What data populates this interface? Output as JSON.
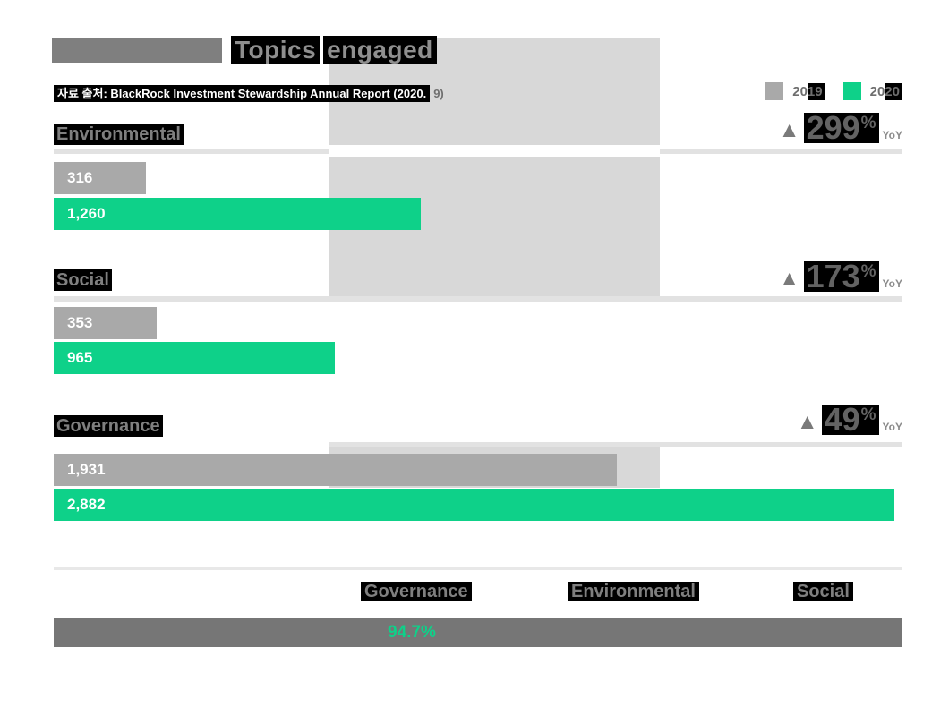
{
  "title": {
    "word1": "Topics",
    "word2": "engaged"
  },
  "source": {
    "highlighted": "자료 출처: BlackRock Investment Stewardship Annual Report (2020.",
    "tail": "9)"
  },
  "legend": {
    "items": [
      {
        "label": "2019",
        "color": "#A9A9A9"
      },
      {
        "label": "2020",
        "color": "#0ED189"
      }
    ]
  },
  "sections": [
    {
      "label": "Environmental",
      "bars": [
        {
          "year": "2019",
          "label": "316"
        },
        {
          "year": "2020",
          "label": "1,260"
        }
      ],
      "yoy": {
        "triangle": "▲",
        "value": "299",
        "unit": "%",
        "suffix": "YoY"
      }
    },
    {
      "label": "Social",
      "bars": [
        {
          "year": "2019",
          "label": "353"
        },
        {
          "year": "2020",
          "label": "965"
        }
      ],
      "yoy": {
        "triangle": "▲",
        "value": "173",
        "unit": "%",
        "suffix": "YoY"
      }
    },
    {
      "label": "Governance",
      "bars": [
        {
          "year": "2019",
          "label": "1,931"
        },
        {
          "year": "2020",
          "label": "2,882"
        }
      ],
      "yoy": {
        "triangle": "▲",
        "value": "49",
        "unit": "%",
        "suffix": "YoY"
      }
    }
  ],
  "bottom": {
    "labels": [
      "Governance",
      "Environmental",
      "Social"
    ],
    "value": "94.7%"
  },
  "colors": {
    "green_2020": "#0ED189",
    "gray_2019": "#A9A9A9",
    "watermark_gray": "#D8D8D8",
    "bottom_bar_gray": "#767676",
    "highlight_black": "#000000",
    "text_gray": "#7F7F7F"
  },
  "chart_data": [
    {
      "type": "bar",
      "orientation": "horizontal",
      "title": "Topics engaged",
      "source": "자료 출처: BlackRock Investment Stewardship Annual Report (2020. 9)",
      "categories": [
        "Environmental",
        "Social",
        "Governance"
      ],
      "series": [
        {
          "name": "2019",
          "color": "#A9A9A9",
          "values": [
            316,
            353,
            1931
          ]
        },
        {
          "name": "2020",
          "color": "#0ED189",
          "values": [
            1260,
            965,
            2882
          ]
        }
      ],
      "yoy_pct": [
        299,
        173,
        49
      ],
      "xlim": [
        0,
        2910
      ],
      "grid": false,
      "legend_position": "top-right"
    },
    {
      "type": "bar",
      "stacked": true,
      "categories": [
        "Governance",
        "Environmental",
        "Social"
      ],
      "visible_values": [
        {
          "category": "Governance",
          "value_pct": 94.7
        }
      ]
    }
  ]
}
